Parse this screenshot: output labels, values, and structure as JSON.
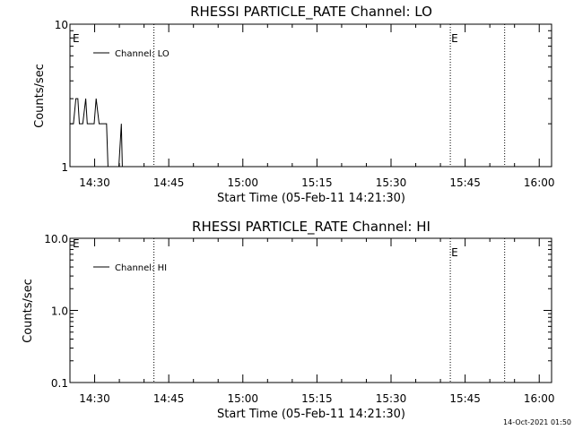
{
  "footer_timestamp": "14-Oct-2021 01:50",
  "colors": {
    "background": "#ffffff",
    "ink": "#000000"
  },
  "chart_data": [
    {
      "type": "line",
      "title": "RHESSI PARTICLE_RATE Channel: LO",
      "xlabel": "Start Time (05-Feb-11 14:21:30)",
      "ylabel": "Counts/sec",
      "x_unit": "minutes after 14:21:30",
      "xlim": [
        3.5,
        101
      ],
      "ylim": [
        1,
        10
      ],
      "yscale": "log",
      "x_tick_labels": [
        "14:30",
        "14:45",
        "15:00",
        "15:15",
        "15:30",
        "15:45",
        "16:00"
      ],
      "x_ticks": [
        8.5,
        23.5,
        38.5,
        53.5,
        68.5,
        83.5,
        98.5
      ],
      "y_tick_labels": [
        "1",
        "10"
      ],
      "y_ticks": [
        1,
        10
      ],
      "legend": {
        "entries": [
          "Channel: LO"
        ],
        "location": "upper-left"
      },
      "series": [
        {
          "name": "Channel: LO",
          "x": [
            3.5,
            4.2,
            4.7,
            5.1,
            5.4,
            6.1,
            6.7,
            7.0,
            8.4,
            8.8,
            9.4,
            10.2,
            10.9,
            11.2,
            11.6,
            12.4,
            13.4,
            13.9,
            14.1,
            14.5
          ],
          "y": [
            2,
            2,
            3,
            3,
            2,
            2,
            3,
            2,
            2,
            3,
            2,
            2,
            2,
            1,
            1,
            1,
            1,
            2,
            1,
            1
          ]
        }
      ],
      "vlines": [
        {
          "x": 20.5,
          "style": "dotted",
          "label": ""
        },
        {
          "x": 80.5,
          "style": "dotted",
          "label": "E"
        },
        {
          "x": 91.5,
          "style": "dotted",
          "label": ""
        }
      ],
      "start_marker": "E"
    },
    {
      "type": "line",
      "title": "RHESSI PARTICLE_RATE Channel: HI",
      "xlabel": "Start Time (05-Feb-11 14:21:30)",
      "ylabel": "Counts/sec",
      "x_unit": "minutes after 14:21:30",
      "xlim": [
        3.5,
        101
      ],
      "ylim": [
        0.1,
        10
      ],
      "yscale": "log",
      "x_tick_labels": [
        "14:30",
        "14:45",
        "15:00",
        "15:15",
        "15:30",
        "15:45",
        "16:00"
      ],
      "x_ticks": [
        8.5,
        23.5,
        38.5,
        53.5,
        68.5,
        83.5,
        98.5
      ],
      "y_tick_labels": [
        "0.1",
        "1.0",
        "10.0"
      ],
      "y_ticks": [
        0.1,
        1,
        10
      ],
      "legend": {
        "entries": [
          "Channel: HI"
        ],
        "location": "upper-left"
      },
      "series": [
        {
          "name": "Channel: HI",
          "x": [],
          "y": []
        }
      ],
      "vlines": [
        {
          "x": 20.5,
          "style": "dotted",
          "label": ""
        },
        {
          "x": 80.5,
          "style": "dotted",
          "label": "E"
        },
        {
          "x": 91.5,
          "style": "dotted",
          "label": ""
        }
      ],
      "start_marker": "E"
    }
  ]
}
